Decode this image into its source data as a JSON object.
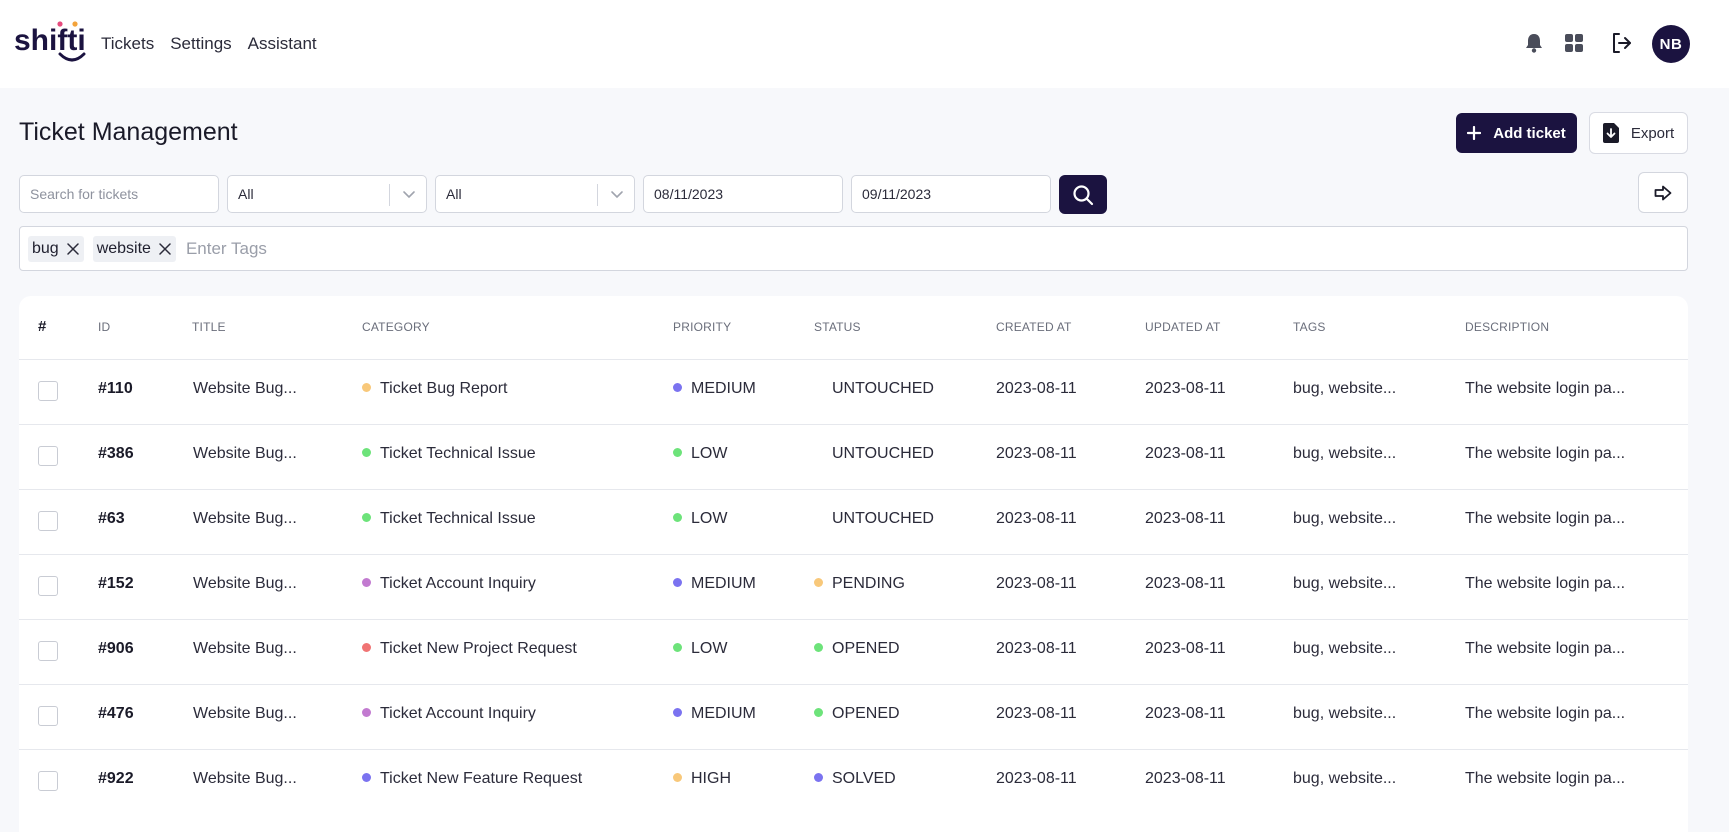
{
  "nav": {
    "logo_text": "shifti",
    "links": [
      "Tickets",
      "Settings",
      "Assistant"
    ],
    "avatar_initials": "NB",
    "icons": [
      "bell-icon",
      "apps-grid-icon",
      "logout-icon"
    ]
  },
  "page": {
    "title": "Ticket Management",
    "add_button": "Add ticket",
    "export_button": "Export"
  },
  "filters": {
    "search_placeholder": "Search for tickets",
    "select1_value": "All",
    "select2_value": "All",
    "date_from": "08/11/2023",
    "date_to": "09/11/2023"
  },
  "tags": {
    "chips": [
      "bug",
      "website"
    ],
    "placeholder": "Enter Tags"
  },
  "table": {
    "headers": [
      "#",
      "ID",
      "TITLE",
      "CATEGORY",
      "PRIORITY",
      "STATUS",
      "CREATED AT",
      "UPDATED AT",
      "TAGS",
      "DESCRIPTION"
    ],
    "rows": [
      {
        "id": "#110",
        "title": "Website Bug...",
        "category": "Ticket Bug Report",
        "category_color": "#f8c87a",
        "priority": "MEDIUM",
        "priority_color": "#7b73f0",
        "status": "UNTOUCHED",
        "status_color": "",
        "created": "2023-08-11",
        "updated": "2023-08-11",
        "tags": "bug, website...",
        "description": "The website login pa..."
      },
      {
        "id": "#386",
        "title": "Website Bug...",
        "category": "Ticket Technical Issue",
        "category_color": "#6de37a",
        "priority": "LOW",
        "priority_color": "#6de37a",
        "status": "UNTOUCHED",
        "status_color": "",
        "created": "2023-08-11",
        "updated": "2023-08-11",
        "tags": "bug, website...",
        "description": "The website login pa..."
      },
      {
        "id": "#63",
        "title": "Website Bug...",
        "category": "Ticket Technical Issue",
        "category_color": "#6de37a",
        "priority": "LOW",
        "priority_color": "#6de37a",
        "status": "UNTOUCHED",
        "status_color": "",
        "created": "2023-08-11",
        "updated": "2023-08-11",
        "tags": "bug, website...",
        "description": "The website login pa..."
      },
      {
        "id": "#152",
        "title": "Website Bug...",
        "category": "Ticket Account Inquiry",
        "category_color": "#c27ad0",
        "priority": "MEDIUM",
        "priority_color": "#7b73f0",
        "status": "PENDING",
        "status_color": "#f8c87a",
        "created": "2023-08-11",
        "updated": "2023-08-11",
        "tags": "bug, website...",
        "description": "The website login pa..."
      },
      {
        "id": "#906",
        "title": "Website Bug...",
        "category": "Ticket New Project Request",
        "category_color": "#f07474",
        "priority": "LOW",
        "priority_color": "#6de37a",
        "status": "OPENED",
        "status_color": "#6de37a",
        "created": "2023-08-11",
        "updated": "2023-08-11",
        "tags": "bug, website...",
        "description": "The website login pa..."
      },
      {
        "id": "#476",
        "title": "Website Bug...",
        "category": "Ticket Account Inquiry",
        "category_color": "#c27ad0",
        "priority": "MEDIUM",
        "priority_color": "#7b73f0",
        "status": "OPENED",
        "status_color": "#6de37a",
        "created": "2023-08-11",
        "updated": "2023-08-11",
        "tags": "bug, website...",
        "description": "The website login pa..."
      },
      {
        "id": "#922",
        "title": "Website Bug...",
        "category": "Ticket New Feature Request",
        "category_color": "#7b73f0",
        "priority": "HIGH",
        "priority_color": "#f8c87a",
        "status": "SOLVED",
        "status_color": "#7b73f0",
        "created": "2023-08-11",
        "updated": "2023-08-11",
        "tags": "bug, website...",
        "description": "The website login pa..."
      }
    ]
  }
}
